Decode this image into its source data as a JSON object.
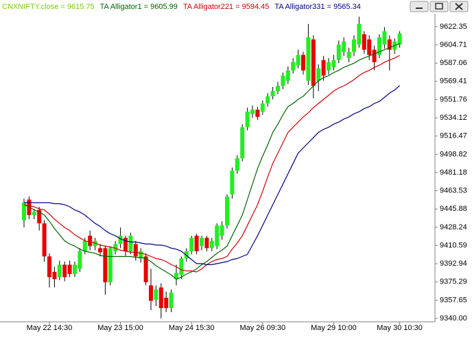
{
  "chart_data": {
    "type": "candlestick",
    "categories": [
      null,
      null,
      null,
      null,
      null,
      "May 22 14:30",
      null,
      null,
      null,
      null,
      null,
      null,
      null,
      null,
      null,
      null,
      null,
      null,
      null,
      "May 23 15:00",
      null,
      null,
      null,
      null,
      null,
      null,
      null,
      null,
      null,
      null,
      null,
      null,
      null,
      "May 24 15:30",
      null,
      null,
      null,
      null,
      null,
      null,
      null,
      null,
      null,
      null,
      null,
      null,
      null,
      "May 26 09:30",
      null,
      null,
      null,
      null,
      null,
      null,
      null,
      null,
      null,
      null,
      null,
      null,
      null,
      "May 29 10:00",
      null,
      null,
      null,
      null,
      null,
      null,
      null,
      null,
      null,
      null,
      null,
      null,
      "May 30 10:30"
    ],
    "ohlc": {
      "name": "CNXNIFTY.close = 9615.75",
      "color": "#7acc00",
      "up_color": "#22ee22",
      "down_color": "#e80000",
      "open": [
        9435,
        9455,
        9440,
        9445,
        9432,
        9400,
        9385,
        9380,
        9392,
        9392,
        9383,
        9388,
        9405,
        9420,
        9410,
        9408,
        9408,
        9375,
        9405,
        9412,
        9418,
        9405,
        9412,
        9398,
        9400,
        9372,
        9358,
        9370,
        9360,
        9350,
        9378,
        9382,
        9398,
        9405,
        9420,
        9410,
        9418,
        9408,
        9410,
        9420,
        9430,
        9460,
        9483,
        9495,
        9525,
        9538,
        9542,
        9540,
        9548,
        9555,
        9560,
        9565,
        9570,
        9580,
        9585,
        9595,
        9570,
        9610,
        9570,
        9590,
        9580,
        9583,
        9590,
        9598,
        9592,
        9598,
        9605,
        9615,
        9610,
        9600,
        9595,
        9605,
        9610,
        9600,
        9605
      ],
      "high": [
        9456,
        9458,
        9446,
        9448,
        9435,
        9403,
        9390,
        9396,
        9395,
        9396,
        9395,
        9408,
        9418,
        9425,
        9418,
        9412,
        9410,
        9410,
        9415,
        9428,
        9420,
        9423,
        9415,
        9408,
        9403,
        9388,
        9372,
        9374,
        9366,
        9368,
        9392,
        9400,
        9408,
        9420,
        9422,
        9420,
        9420,
        9418,
        9432,
        9434,
        9460,
        9486,
        9498,
        9528,
        9544,
        9546,
        9545,
        9551,
        9558,
        9564,
        9569,
        9578,
        9584,
        9592,
        9600,
        9598,
        9625,
        9614,
        9586,
        9594,
        9592,
        9595,
        9609,
        9612,
        9602,
        9614,
        9632,
        9618,
        9614,
        9604,
        9615,
        9622,
        9614,
        9611,
        9618
      ],
      "low": [
        9428,
        9436,
        9436,
        9425,
        9395,
        9370,
        9370,
        9377,
        9376,
        9380,
        9380,
        9385,
        9402,
        9406,
        9406,
        9400,
        9363,
        9372,
        9402,
        9408,
        9400,
        9402,
        9396,
        9394,
        9372,
        9348,
        9352,
        9340,
        9346,
        9346,
        9372,
        9378,
        9395,
        9402,
        9402,
        9406,
        9405,
        9405,
        9407,
        9416,
        9427,
        9456,
        9480,
        9492,
        9522,
        9534,
        9532,
        9537,
        9545,
        9552,
        9557,
        9562,
        9567,
        9577,
        9582,
        9576,
        9566,
        9553,
        9560,
        9570,
        9576,
        9580,
        9587,
        9594,
        9588,
        9594,
        9602,
        9596,
        9590,
        9580,
        9592,
        9601,
        9580,
        9596,
        9602
      ],
      "close": [
        9452,
        9440,
        9443,
        9432,
        9400,
        9380,
        9378,
        9392,
        9380,
        9383,
        9392,
        9405,
        9415,
        9410,
        9415,
        9404,
        9375,
        9408,
        9412,
        9420,
        9405,
        9420,
        9400,
        9405,
        9375,
        9357,
        9368,
        9350,
        9350,
        9365,
        9384,
        9398,
        9405,
        9418,
        9405,
        9418,
        9408,
        9415,
        9430,
        9430,
        9458,
        9483,
        9495,
        9525,
        9540,
        9542,
        9535,
        9548,
        9555,
        9560,
        9565,
        9575,
        9580,
        9588,
        9595,
        9580,
        9612,
        9565,
        9582,
        9575,
        9588,
        9590,
        9605,
        9608,
        9598,
        9610,
        9625,
        9600,
        9595,
        9588,
        9612,
        9618,
        9600,
        9608,
        9615.75
      ]
    },
    "series": [
      {
        "name": "TA Alligator1 = 9605.99",
        "color": "#006400",
        "values": [
          9450,
          9448,
          9445,
          9443,
          9440,
          9434,
          9427,
          9421,
          9415,
          9412,
          9410,
          9407,
          9405,
          9404,
          9403,
          9401,
          9400,
          9400,
          9400,
          9400,
          9400,
          9400,
          9399,
          9399,
          9398,
          9395,
          9391,
          9388,
          9385,
          9382,
          9378,
          9380,
          9383,
          9385,
          9388,
          9392,
          9395,
          9399,
          9403,
          9406,
          9410,
          9420,
          9430,
          9440,
          9455,
          9470,
          9485,
          9497,
          9508,
          9520,
          9528,
          9537,
          9545,
          9548,
          9552,
          9555,
          9560,
          9565,
          9570,
          9573,
          9575,
          9578,
          9580,
          9583,
          9585,
          9587,
          9590,
          9592,
          9594,
          9596,
          9598,
          9600,
          9602,
          9604,
          9605.99
        ]
      },
      {
        "name": "TA Alligator221 = 9594.45",
        "color": "#cc0000",
        "values": [
          9450,
          9449,
          9448,
          9446,
          9445,
          9441,
          9436,
          9432,
          9428,
          9425,
          9421,
          9418,
          9415,
          9414,
          9413,
          9411,
          9410,
          9409,
          9408,
          9406,
          9405,
          9404,
          9404,
          9403,
          9402,
          9400,
          9398,
          9397,
          9395,
          9392,
          9390,
          9387,
          9386,
          9386,
          9385,
          9388,
          9392,
          9395,
          9397,
          9398,
          9400,
          9407,
          9413,
          9420,
          9430,
          9440,
          9450,
          9463,
          9477,
          9490,
          9500,
          9510,
          9520,
          9525,
          9530,
          9535,
          9539,
          9544,
          9548,
          9552,
          9556,
          9560,
          9563,
          9565,
          9568,
          9571,
          9575,
          9578,
          9580,
          9583,
          9585,
          9588,
          9590,
          9592,
          9594.45
        ]
      },
      {
        "name": "TA Alligator331 = 9565.34",
        "color": "#000080",
        "values": [
          9452,
          9452,
          9452,
          9452,
          9452,
          9452,
          9451,
          9451,
          9450,
          9448,
          9445,
          9443,
          9440,
          9436,
          9432,
          9429,
          9425,
          9422,
          9420,
          9417,
          9415,
          9414,
          9414,
          9413,
          9412,
          9412,
          9411,
          9411,
          9410,
          9408,
          9407,
          9405,
          9401,
          9397,
          9393,
          9393,
          9392,
          9392,
          9393,
          9394,
          9395,
          9397,
          9398,
          9400,
          9402,
          9411,
          9420,
          9430,
          9440,
          9450,
          9460,
          9470,
          9480,
          9490,
          9500,
          9505,
          9510,
          9515,
          9520,
          9523,
          9525,
          9528,
          9530,
          9533,
          9535,
          9538,
          9540,
          9543,
          9545,
          9548,
          9550,
          9554,
          9558,
          9561,
          9565.34
        ]
      }
    ],
    "ylim": [
      9336.7,
      9634.9
    ],
    "yticks": [
      {
        "value": 9340,
        "label": "9340.00"
      },
      9357.65,
      9375.29,
      9392.94,
      9410.59,
      9428.24,
      9445.88,
      9463.53,
      9481.18,
      9498.82,
      9516.47,
      9534.12,
      9551.76,
      9569.41,
      9587.06,
      9604.71,
      9622.35
    ],
    "grid": false
  }
}
